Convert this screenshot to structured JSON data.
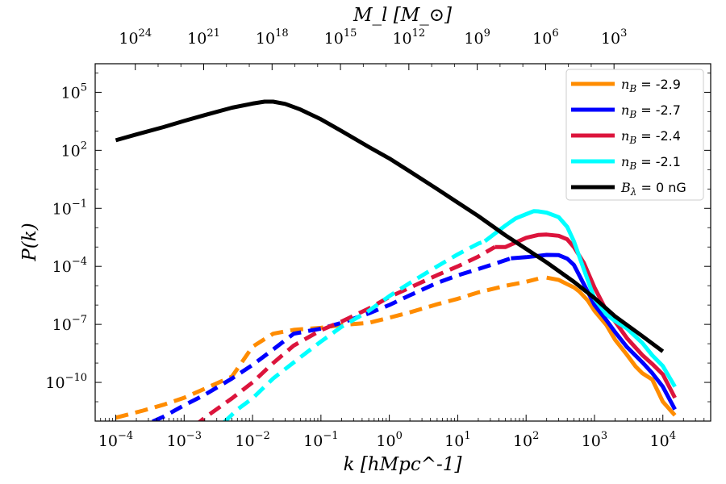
{
  "chart_data": {
    "type": "line",
    "xlabel": "k [hMpc^-1]",
    "ylabel": "P(k)",
    "top_xlabel": "M_l [M_⊙]",
    "xlim": [
      5e-05,
      50000
    ],
    "ylim": [
      1e-12,
      3000000.0
    ],
    "xscale": "log",
    "yscale": "log",
    "x_ticks": [
      {
        "value": 0.0001,
        "base": "10",
        "exp": "−4"
      },
      {
        "value": 0.001,
        "base": "10",
        "exp": "−3"
      },
      {
        "value": 0.01,
        "base": "10",
        "exp": "−2"
      },
      {
        "value": 0.1,
        "base": "10",
        "exp": "−1"
      },
      {
        "value": 1,
        "base": "10",
        "exp": "0"
      },
      {
        "value": 10,
        "base": "10",
        "exp": "1"
      },
      {
        "value": 100,
        "base": "10",
        "exp": "2"
      },
      {
        "value": 1000,
        "base": "10",
        "exp": "3"
      },
      {
        "value": 10000,
        "base": "10",
        "exp": "4"
      }
    ],
    "y_ticks": [
      {
        "value": 100000.0,
        "base": "10",
        "exp": "5"
      },
      {
        "value": 100.0,
        "base": "10",
        "exp": "2"
      },
      {
        "value": 0.1,
        "base": "10",
        "exp": "−1"
      },
      {
        "value": 0.0001,
        "base": "10",
        "exp": "−4"
      },
      {
        "value": 1e-07,
        "base": "10",
        "exp": "−7"
      },
      {
        "value": 1e-10,
        "base": "10",
        "exp": "−10"
      }
    ],
    "top_ticks": [
      {
        "k": 0.000193,
        "base": "10",
        "exp": "24"
      },
      {
        "k": 0.00193,
        "base": "10",
        "exp": "21"
      },
      {
        "k": 0.0193,
        "base": "10",
        "exp": "18"
      },
      {
        "k": 0.193,
        "base": "10",
        "exp": "15"
      },
      {
        "k": 1.93,
        "base": "10",
        "exp": "12"
      },
      {
        "k": 19.3,
        "base": "10",
        "exp": "9"
      },
      {
        "k": 193,
        "base": "10",
        "exp": "6"
      },
      {
        "k": 1930,
        "base": "10",
        "exp": "3"
      }
    ],
    "legend_position": "top-right",
    "series": [
      {
        "name": "n_B = -2.9",
        "label_var": "n",
        "label_sub": "B",
        "label_val": " = -2.9",
        "color": "#ff8c00",
        "dashed_until_k": 170,
        "x": [
          0.0001,
          0.00025,
          0.0005,
          0.001,
          0.002,
          0.005,
          0.01,
          0.02,
          0.04,
          0.1,
          0.2,
          0.5,
          1,
          2,
          5,
          10,
          20,
          50,
          100,
          150,
          200,
          300,
          400,
          500,
          600,
          800,
          1000,
          1500,
          2000,
          3000,
          4000,
          5000,
          7000,
          10000,
          15000
        ],
        "y": [
          1.5e-12,
          3.5e-12,
          7e-12,
          1.6e-11,
          4.7e-11,
          2e-10,
          7e-09,
          3.3e-08,
          5.2e-08,
          6.6e-08,
          9.3e-08,
          1.2e-07,
          2.2e-07,
          4.2e-07,
          1.1e-06,
          2.1e-06,
          4.5e-06,
          9.9e-06,
          1.6e-05,
          2.3e-05,
          2.6e-05,
          2e-05,
          1.2e-05,
          8.2e-06,
          5e-06,
          1.7e-06,
          5e-07,
          9e-08,
          1.6e-08,
          2.6e-09,
          6.6e-10,
          3e-10,
          1.4e-10,
          1e-11,
          2e-12
        ]
      },
      {
        "name": "n_B = -2.7",
        "label_var": "n",
        "label_sub": "B",
        "label_val": " = -2.7",
        "color": "#0000ff",
        "dashed_until_k": 60,
        "x": [
          0.0001,
          0.0002,
          0.0005,
          0.001,
          0.002,
          0.005,
          0.01,
          0.02,
          0.04,
          0.1,
          0.2,
          0.5,
          1,
          2,
          5,
          10,
          20,
          40,
          60,
          100,
          150,
          200,
          300,
          400,
          500,
          700,
          1000,
          1500,
          2000,
          3000,
          5000,
          7000,
          10000,
          15000
        ],
        "y": [
          1.3e-13,
          4e-13,
          1.7e-12,
          6.6e-12,
          2.3e-11,
          1.6e-10,
          8e-10,
          5e-09,
          3.3e-08,
          6e-08,
          1.2e-07,
          3.7e-07,
          1e-06,
          3.2e-06,
          1.4e-05,
          3.4e-05,
          7.3e-05,
          0.00016,
          0.00026,
          0.0003,
          0.00035,
          0.00039,
          0.00038,
          0.00025,
          0.00012,
          1.2e-05,
          1e-06,
          1.6e-07,
          4e-08,
          6.6e-09,
          1.1e-09,
          3e-10,
          6e-11,
          4e-12
        ]
      },
      {
        "name": "n_B = -2.4",
        "label_var": "n",
        "label_sub": "B",
        "label_val": " = -2.4",
        "color": "#dc143c",
        "dashed_until_k": 35,
        "x": [
          0.0008,
          0.001,
          0.002,
          0.005,
          0.01,
          0.02,
          0.04,
          0.1,
          0.2,
          0.5,
          1,
          2,
          5,
          10,
          20,
          35,
          50,
          70,
          100,
          150,
          200,
          300,
          400,
          500,
          700,
          1000,
          1500,
          2000,
          3000,
          5000,
          7000,
          10000,
          15000
        ],
        "y": [
          1.3e-13,
          2e-13,
          1.5e-12,
          1.5e-11,
          1e-10,
          1e-09,
          8e-09,
          5e-08,
          1.4e-07,
          6.6e-07,
          2.6e-06,
          8e-06,
          3.5e-05,
          0.0001,
          0.00032,
          0.001,
          0.001,
          0.0017,
          0.003,
          0.0042,
          0.0044,
          0.0038,
          0.0025,
          0.001,
          0.00015,
          8e-06,
          5e-07,
          1.4e-07,
          1.9e-08,
          2.6e-09,
          9e-10,
          2.6e-10,
          1.6e-11
        ]
      },
      {
        "name": "n_B = -2.1",
        "label_var": "n",
        "label_sub": "B",
        "label_val": " = -2.1",
        "color": "#00ffff",
        "dashed_until_k": 25,
        "x": [
          0.0025,
          0.004,
          0.006,
          0.01,
          0.02,
          0.05,
          0.1,
          0.2,
          0.5,
          1,
          2,
          5,
          10,
          20,
          25,
          50,
          70,
          100,
          130,
          150,
          200,
          300,
          400,
          500,
          700,
          1000,
          1500,
          2000,
          3000,
          5000,
          7000,
          10000,
          15000
        ],
        "y": [
          1.3e-13,
          1e-12,
          4e-12,
          1.5e-11,
          1.6e-10,
          2e-09,
          1.3e-08,
          7.5e-08,
          5e-07,
          2.9e-06,
          1.4e-05,
          0.0001,
          0.00042,
          0.0015,
          0.002,
          0.013,
          0.03,
          0.05,
          0.072,
          0.07,
          0.06,
          0.035,
          0.011,
          0.002,
          7e-05,
          2.1e-06,
          3.2e-07,
          1.5e-07,
          6e-08,
          1.1e-08,
          2.5e-09,
          7e-10,
          6e-11
        ]
      },
      {
        "name": "B_λ = 0 nG",
        "label_var": "B",
        "label_sub": "λ",
        "label_val": " = 0 nG",
        "color": "#000000",
        "dashed_until_k": 0,
        "x": [
          0.0001,
          0.0002,
          0.0005,
          0.001,
          0.002,
          0.005,
          0.01,
          0.015,
          0.02,
          0.03,
          0.05,
          0.1,
          0.2,
          0.5,
          1,
          2,
          5,
          10,
          20,
          50,
          100,
          200,
          500,
          1000,
          2000,
          5000,
          10000
        ],
        "y": [
          330,
          660,
          1600,
          3300,
          6600,
          16000.0,
          26000.0,
          33000.0,
          33000.0,
          25000.0,
          13000.0,
          4000,
          1000,
          150,
          38,
          8,
          1,
          0.2,
          0.04,
          0.004,
          0.0008,
          0.00016,
          1.6e-05,
          2.3e-06,
          2.6e-07,
          2.5e-08,
          4e-09
        ]
      }
    ]
  }
}
